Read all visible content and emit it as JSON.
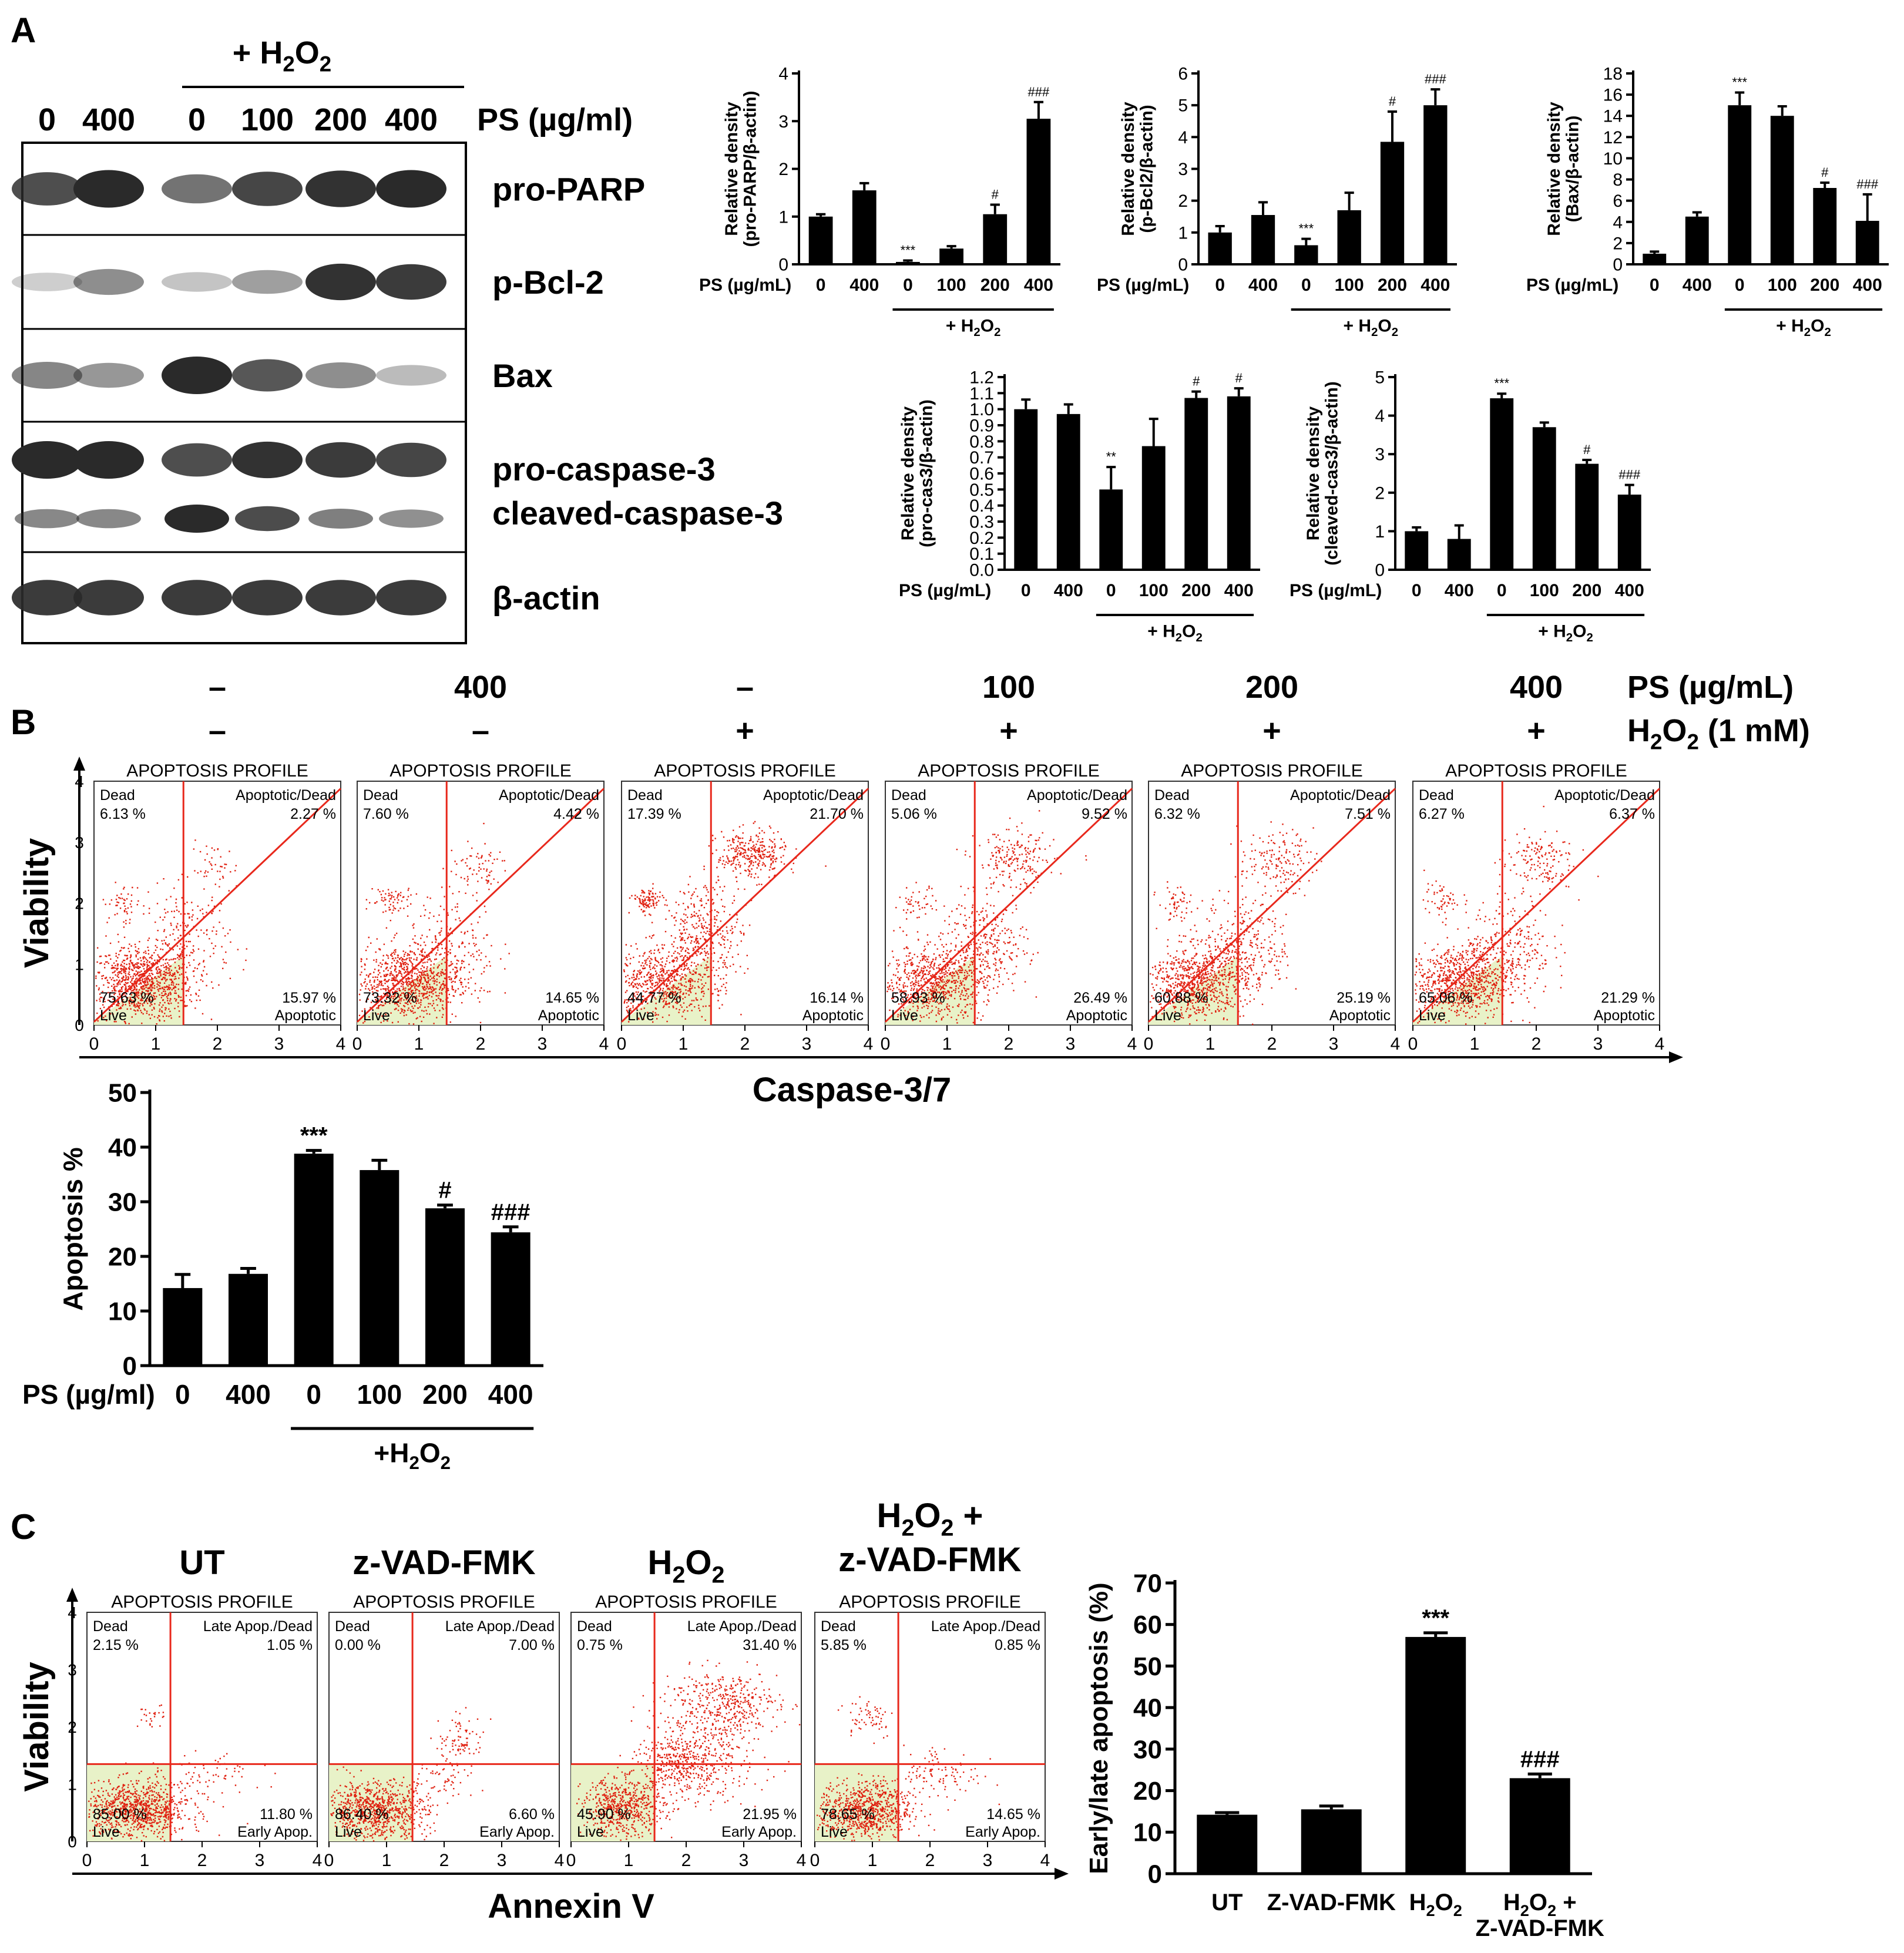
{
  "colors": {
    "bar": "#000000",
    "dot": "#e02010",
    "quad_line": "#e8281c",
    "live_fill": "#e8f2c8",
    "band": "#2a2a2a",
    "background": "#ffffff"
  },
  "panel_labels": {
    "a": "A",
    "b": "B",
    "c": "C"
  },
  "western_blot": {
    "h2o2_label": "+ H2O2",
    "ps_label": "PS (µg/ml)",
    "lanes": [
      "0",
      "400",
      "0",
      "100",
      "200",
      "400"
    ],
    "rows": [
      {
        "label": "pro-PARP",
        "intensity": [
          0.8,
          1.0,
          0.6,
          0.85,
          0.95,
          1.0
        ]
      },
      {
        "label": "p-Bcl-2",
        "intensity": [
          0.1,
          0.45,
          0.15,
          0.35,
          0.95,
          0.9
        ]
      },
      {
        "label": "Bax",
        "intensity": [
          0.5,
          0.4,
          1.0,
          0.75,
          0.45,
          0.2
        ]
      },
      {
        "label": "pro-caspase-3",
        "label2": "cleaved-caspase-3",
        "intensity": [
          1.0,
          1.0,
          0.8,
          0.95,
          0.9,
          0.85
        ],
        "intensity2": [
          0.45,
          0.45,
          1.0,
          0.8,
          0.5,
          0.4
        ]
      },
      {
        "label": "β-actin",
        "intensity": [
          0.9,
          0.9,
          0.9,
          0.9,
          0.9,
          0.9
        ]
      }
    ]
  },
  "panel_b": {
    "treatments": {
      "ps_header": "PS (µg/mL)",
      "h2o2_header": "H2O2 (1 mM)",
      "ps_values": [
        "–",
        "400",
        "–",
        "100",
        "200",
        "400"
      ],
      "h2o2_values": [
        "–",
        "–",
        "+",
        "+",
        "+",
        "+"
      ]
    },
    "axis_title_y": "Viability",
    "axis_title_x": "Caspase-3/7"
  },
  "panel_c": {
    "column_titles": [
      "UT",
      "z-VAD-FMK",
      "H2O2",
      "H2O2 +\nz-VAD-FMK"
    ],
    "axis_title_y": "Viability",
    "axis_title_x": "Annexin V"
  },
  "chart_data": [
    {
      "id": "pro-parp",
      "type": "bar",
      "ylabel": "Relative density\n(pro-PARP/β-actin)",
      "ylim": [
        0,
        4
      ],
      "yticks": [
        "0",
        "1",
        "2",
        "3",
        "4"
      ],
      "xlabel_prefix": "PS (µg/mL)",
      "categories": [
        "0",
        "400",
        "0",
        "100",
        "200",
        "400"
      ],
      "values": [
        1.0,
        1.55,
        0.05,
        0.33,
        1.05,
        3.05
      ],
      "errors": [
        0.05,
        0.15,
        0.03,
        0.05,
        0.2,
        0.35
      ],
      "annotations": [
        "",
        "",
        "***",
        "",
        "#",
        "###"
      ],
      "group_label": "+ H2O2"
    },
    {
      "id": "p-bcl2",
      "type": "bar",
      "ylabel": "Relative density\n(p-Bcl2/β-actin)",
      "ylim": [
        0,
        6
      ],
      "yticks": [
        "0",
        "1",
        "2",
        "3",
        "4",
        "5",
        "6"
      ],
      "xlabel_prefix": "PS (µg/mL)",
      "categories": [
        "0",
        "400",
        "0",
        "100",
        "200",
        "400"
      ],
      "values": [
        1.0,
        1.55,
        0.6,
        1.7,
        3.85,
        5.0
      ],
      "errors": [
        0.2,
        0.4,
        0.2,
        0.55,
        0.95,
        0.5
      ],
      "annotations": [
        "",
        "",
        "***",
        "",
        "#",
        "###"
      ],
      "group_label": "+ H2O2"
    },
    {
      "id": "bax",
      "type": "bar",
      "ylabel": "Relative density\n(Bax/β-actin)",
      "ylim": [
        0,
        18
      ],
      "yticks": [
        "0",
        "2",
        "4",
        "6",
        "8",
        "10",
        "12",
        "14",
        "16",
        "18"
      ],
      "xlabel_prefix": "PS (µg/mL)",
      "categories": [
        "0",
        "400",
        "0",
        "100",
        "200",
        "400"
      ],
      "values": [
        1.0,
        4.5,
        15.0,
        14.0,
        7.2,
        4.1
      ],
      "errors": [
        0.2,
        0.4,
        1.2,
        0.9,
        0.5,
        2.5
      ],
      "annotations": [
        "",
        "",
        "***",
        "",
        "#",
        "###"
      ],
      "group_label": "+ H2O2"
    },
    {
      "id": "pro-cas3",
      "type": "bar",
      "ylabel": "Relative density\n(pro-cas3/β-actin)",
      "ylim": [
        0,
        1.2
      ],
      "yticks": [
        "0.0",
        "0.1",
        "0.2",
        "0.3",
        "0.4",
        "0.5",
        "0.6",
        "0.7",
        "0.8",
        "0.9",
        "1.0",
        "1.1",
        "1.2"
      ],
      "xlabel_prefix": "PS (µg/mL)",
      "categories": [
        "0",
        "400",
        "0",
        "100",
        "200",
        "400"
      ],
      "values": [
        1.0,
        0.97,
        0.5,
        0.77,
        1.07,
        1.08
      ],
      "errors": [
        0.06,
        0.06,
        0.14,
        0.17,
        0.04,
        0.05
      ],
      "annotations": [
        "",
        "",
        "**",
        "",
        "#",
        "#"
      ],
      "group_label": "+ H2O2"
    },
    {
      "id": "cleaved-cas3",
      "type": "bar",
      "ylabel": "Relative density\n(cleaved-cas3/β-actin)",
      "ylim": [
        0,
        5
      ],
      "yticks": [
        "0",
        "1",
        "2",
        "3",
        "4",
        "5"
      ],
      "xlabel_prefix": "PS (µg/mL)",
      "categories": [
        "0",
        "400",
        "0",
        "100",
        "200",
        "400"
      ],
      "values": [
        1.0,
        0.8,
        4.45,
        3.7,
        2.75,
        1.95
      ],
      "errors": [
        0.1,
        0.35,
        0.12,
        0.12,
        0.1,
        0.25
      ],
      "annotations": [
        "",
        "",
        "***",
        "",
        "#",
        "###"
      ],
      "group_label": "+ H2O2"
    },
    {
      "id": "caspase-apoptosis",
      "type": "bar",
      "ylabel": "Apoptosis %",
      "ylim": [
        0,
        50
      ],
      "yticks": [
        "0",
        "10",
        "20",
        "30",
        "40",
        "50"
      ],
      "xlabel_prefix": "PS (µg/ml)",
      "categories": [
        "0",
        "400",
        "0",
        "100",
        "200",
        "400"
      ],
      "values": [
        14.2,
        16.8,
        38.8,
        35.8,
        28.8,
        24.4
      ],
      "errors": [
        2.5,
        1.0,
        0.6,
        1.8,
        0.6,
        1.0
      ],
      "annotations": [
        "",
        "",
        "***",
        "",
        "#",
        "###"
      ],
      "group_label": "+H2O2"
    },
    {
      "id": "annexin-apoptosis",
      "type": "bar",
      "ylabel": "Early/late apoptosis (%)",
      "ylim": [
        0,
        70
      ],
      "yticks": [
        "0",
        "10",
        "20",
        "30",
        "40",
        "50",
        "60",
        "70"
      ],
      "xlabel_prefix": "",
      "categories": [
        "UT",
        "Z-VAD-FMK",
        "H2O2",
        "H2O2 +\nZ-VAD-FMK"
      ],
      "values": [
        14.2,
        15.5,
        57.0,
        23.0
      ],
      "errors": [
        0.5,
        0.8,
        1.0,
        1.0
      ],
      "annotations": [
        "",
        "",
        "***",
        "###"
      ],
      "group_label": ""
    },
    {
      "id": "caspase-flow",
      "type": "scatter",
      "title": "APOPTOSIS PROFILE",
      "xlim": [
        0,
        4
      ],
      "ylim": [
        0,
        4
      ],
      "quadrant_labels": {
        "tl": "Dead",
        "tr": "Apoptotic/Dead",
        "bl": "Live",
        "br": "Apoptotic"
      },
      "panels": [
        {
          "dead": "6.13 %",
          "apoptotic_dead": "2.27 %",
          "live": "75.63 %",
          "apoptotic": "15.97 %",
          "clusters": [
            [
              0.75,
              0.7,
              0.42,
              0.3,
              950
            ],
            [
              0.45,
              2.0,
              0.16,
              0.16,
              55
            ],
            [
              1.95,
              2.55,
              0.2,
              0.22,
              45
            ],
            [
              1.5,
              1.4,
              0.35,
              0.45,
              200
            ]
          ]
        },
        {
          "dead": "7.60 %",
          "apoptotic_dead": "4.42 %",
          "live": "73.32 %",
          "apoptotic": "14.65 %",
          "clusters": [
            [
              0.8,
              0.7,
              0.42,
              0.3,
              900
            ],
            [
              0.5,
              2.05,
              0.18,
              0.15,
              70
            ],
            [
              1.95,
              2.6,
              0.25,
              0.2,
              70
            ],
            [
              1.55,
              1.3,
              0.35,
              0.45,
              200
            ]
          ]
        },
        {
          "dead": "17.39 %",
          "apoptotic_dead": "21.70 %",
          "live": "44.77 %",
          "apoptotic": "16.14 %",
          "clusters": [
            [
              0.65,
              0.7,
              0.4,
              0.3,
              650
            ],
            [
              0.4,
              2.05,
              0.12,
              0.1,
              110
            ],
            [
              2.1,
              2.8,
              0.28,
              0.2,
              320
            ],
            [
              1.35,
              1.5,
              0.3,
              0.4,
              350
            ]
          ]
        },
        {
          "dead": "5.06 %",
          "apoptotic_dead": "9.52 %",
          "live": "58.93 %",
          "apoptotic": "26.49 %",
          "clusters": [
            [
              0.75,
              0.7,
              0.42,
              0.3,
              750
            ],
            [
              0.5,
              2.0,
              0.15,
              0.14,
              45
            ],
            [
              2.1,
              2.7,
              0.32,
              0.25,
              200
            ],
            [
              1.6,
              1.3,
              0.35,
              0.4,
              330
            ]
          ]
        },
        {
          "dead": "6.32 %",
          "apoptotic_dead": "7.51 %",
          "live": "60.88 %",
          "apoptotic": "25.19 %",
          "clusters": [
            [
              0.75,
              0.7,
              0.4,
              0.3,
              760
            ],
            [
              0.45,
              2.0,
              0.15,
              0.14,
              55
            ],
            [
              2.05,
              2.7,
              0.3,
              0.25,
              160
            ],
            [
              1.55,
              1.3,
              0.35,
              0.4,
              320
            ]
          ]
        },
        {
          "dead": "6.27 %",
          "apoptotic_dead": "6.37 %",
          "live": "65.06 %",
          "apoptotic": "21.29 %",
          "clusters": [
            [
              0.75,
              0.7,
              0.4,
              0.3,
              800
            ],
            [
              0.45,
              2.05,
              0.14,
              0.14,
              55
            ],
            [
              2.0,
              2.7,
              0.3,
              0.25,
              150
            ],
            [
              1.55,
              1.3,
              0.35,
              0.4,
              270
            ]
          ]
        }
      ]
    },
    {
      "id": "annexin-flow",
      "type": "scatter",
      "title": "APOPTOSIS PROFILE",
      "xlim": [
        0,
        4
      ],
      "ylim": [
        0,
        4
      ],
      "quadrant_labels": {
        "tl": "Dead",
        "tr": "Late Apop./Dead",
        "bl": "Live",
        "br": "Early Apop."
      },
      "panels": [
        {
          "dead": "2.15 %",
          "late": "1.05 %",
          "live": "85.00 %",
          "early": "11.80 %",
          "clusters": [
            [
              0.85,
              0.55,
              0.45,
              0.25,
              900
            ],
            [
              1.1,
              2.2,
              0.12,
              0.1,
              25
            ],
            [
              2.1,
              1.1,
              0.45,
              0.2,
              80
            ]
          ]
        },
        {
          "dead": "0.00 %",
          "late": "7.00 %",
          "live": "86.40 %",
          "early": "6.60 %",
          "clusters": [
            [
              0.8,
              0.55,
              0.45,
              0.25,
              850
            ],
            [
              2.3,
              1.8,
              0.2,
              0.2,
              80
            ],
            [
              2.0,
              1.1,
              0.3,
              0.2,
              60
            ]
          ]
        },
        {
          "dead": "0.75 %",
          "late": "31.40 %",
          "live": "45.90 %",
          "early": "21.95 %",
          "clusters": [
            [
              0.9,
              0.6,
              0.35,
              0.25,
              600
            ],
            [
              2.6,
              2.4,
              0.5,
              0.3,
              420
            ],
            [
              1.9,
              1.4,
              0.35,
              0.3,
              380
            ],
            [
              2.4,
              1.3,
              0.5,
              0.3,
              150
            ]
          ]
        },
        {
          "dead": "5.85 %",
          "late": "0.85 %",
          "live": "78.65 %",
          "early": "14.65 %",
          "clusters": [
            [
              0.85,
              0.55,
              0.4,
              0.25,
              800
            ],
            [
              0.9,
              2.2,
              0.25,
              0.2,
              60
            ],
            [
              2.2,
              1.2,
              0.35,
              0.25,
              110
            ]
          ]
        }
      ]
    }
  ]
}
